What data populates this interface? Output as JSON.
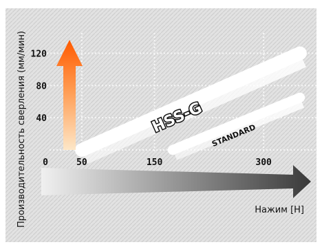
{
  "chart_data": {
    "type": "line",
    "ylabel": "Производительность сверления (мм/мин)",
    "xlabel": "Нажим [Н]",
    "x_ticks": [
      "0",
      "50",
      "150",
      "300"
    ],
    "y_ticks": [
      "40",
      "80",
      "120"
    ],
    "xlim": [
      0,
      350
    ],
    "ylim": [
      0,
      140
    ],
    "grid": true,
    "series": [
      {
        "name": "HSS-G",
        "x": [
          50,
          350
        ],
        "y": [
          0,
          120
        ]
      },
      {
        "name": "STANDARD",
        "x": [
          175,
          350
        ],
        "y": [
          0,
          65
        ]
      }
    ]
  },
  "colors": {
    "background": "#e2e2e2",
    "hatch": "#cfcfcf",
    "gridline": "#f6f6f6",
    "hss_band": "#ffffff",
    "standard_band": "#ffffff",
    "up_arrow_top": "#ff5a00",
    "up_arrow_bottom": "#fde7c8",
    "right_arrow_light": "#f0f0f0",
    "right_arrow_dark": "#3a3a3a"
  }
}
